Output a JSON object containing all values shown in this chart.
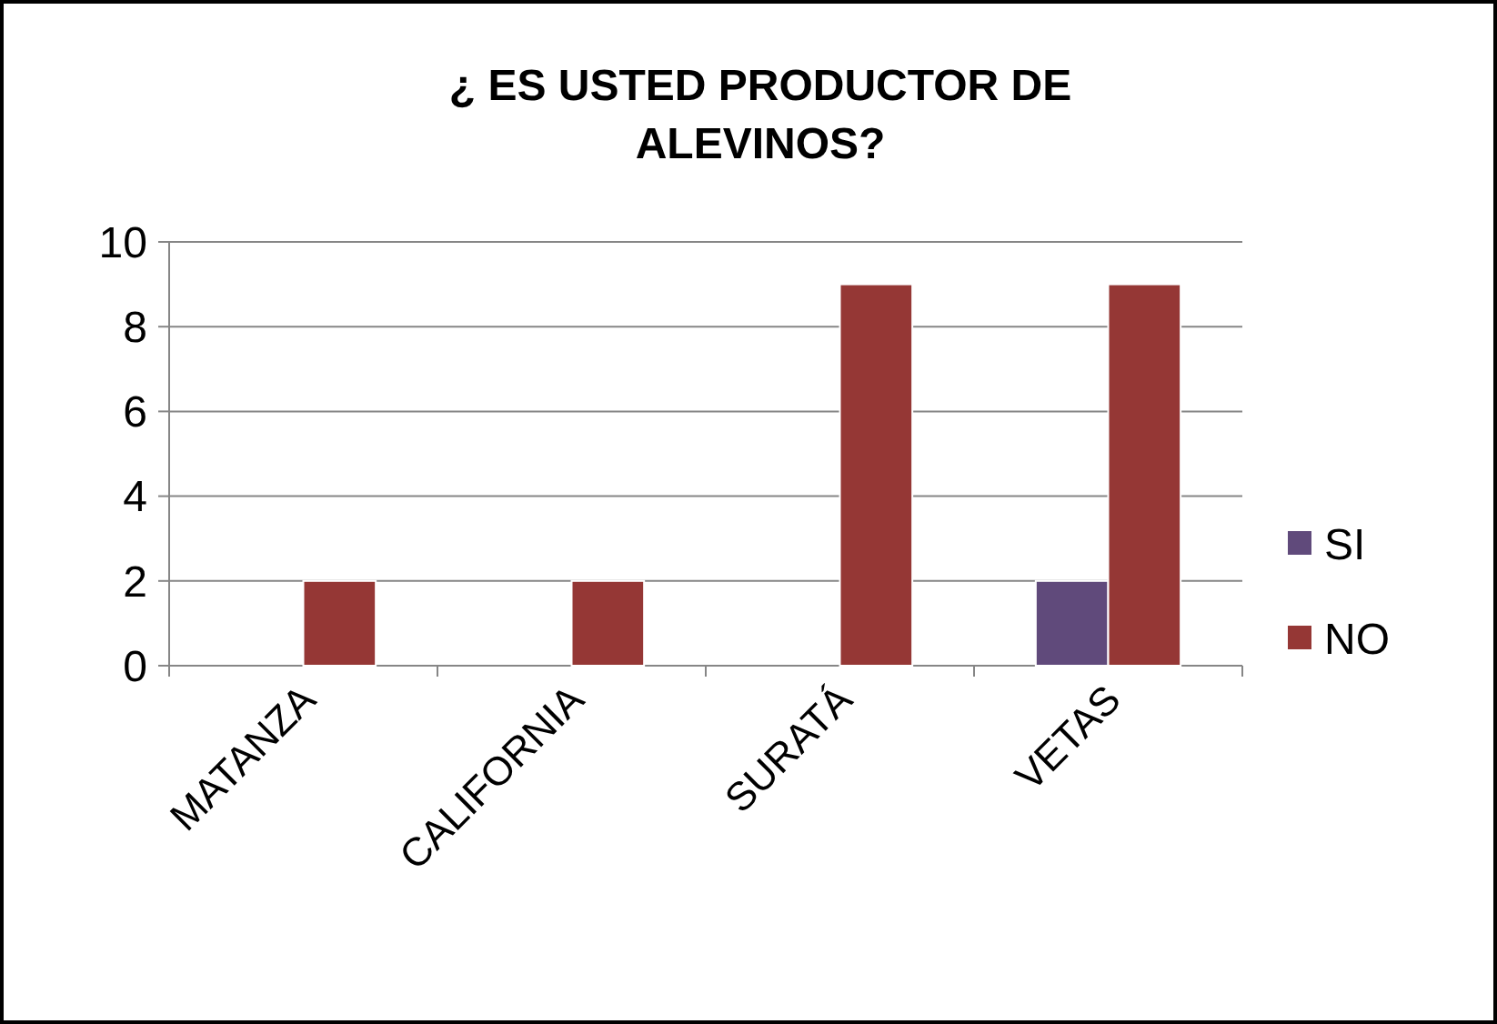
{
  "chart_data": {
    "type": "bar",
    "title": "¿ ES USTED PRODUCTOR DE ALEVINOS?",
    "categories": [
      "MATANZA",
      "CALIFORNIA",
      "SURATÁ",
      "VETAS"
    ],
    "series": [
      {
        "name": "SI",
        "color": "#604a7b",
        "values": [
          0,
          0,
          0,
          2
        ]
      },
      {
        "name": "NO",
        "color": "#953735",
        "values": [
          2,
          2,
          9,
          9
        ]
      }
    ],
    "ylim": [
      0,
      10
    ],
    "yticks": [
      0,
      2,
      4,
      6,
      8,
      10
    ],
    "grid": "y",
    "legend": "right"
  }
}
